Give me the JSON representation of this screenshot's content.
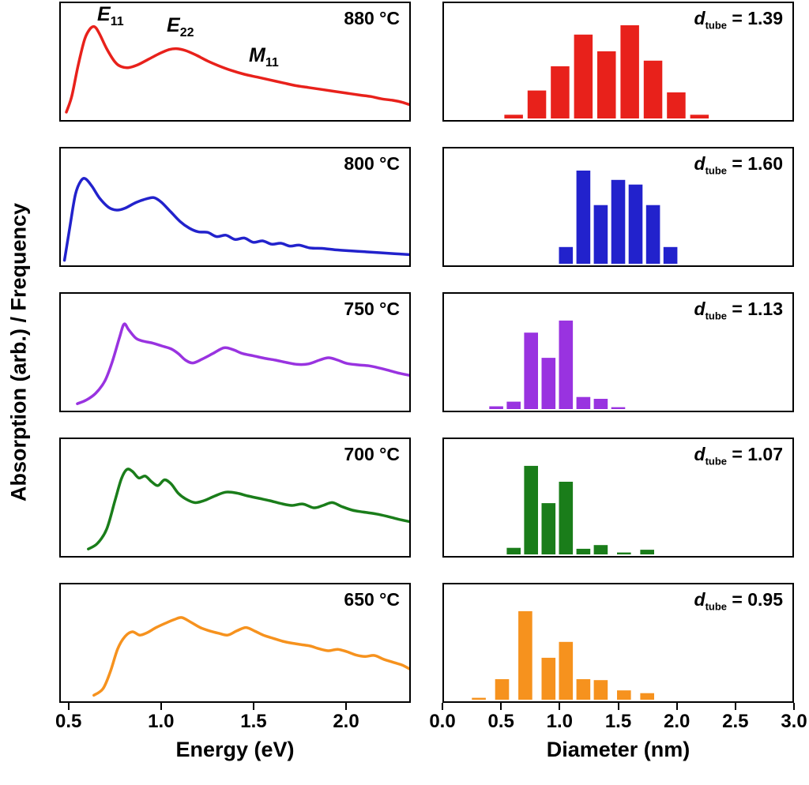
{
  "ylabel": "Absorption (arb.) / Frequency",
  "labels": {
    "d_symbol": "d",
    "d_sub": "tube"
  },
  "axes": {
    "energy": {
      "title": "Energy (eV)",
      "range": [
        0.45,
        2.35
      ],
      "tick_values": [
        0.5,
        1.0,
        1.5,
        2.0
      ],
      "tick_labels": [
        "0.5",
        "1.0",
        "1.5",
        "2.0"
      ]
    },
    "diameter": {
      "title": "Diameter (nm)",
      "range": [
        0.0,
        3.0
      ],
      "tick_values": [
        0.0,
        0.5,
        1.0,
        1.5,
        2.0,
        2.5,
        3.0
      ],
      "tick_labels": [
        "0.0",
        "0.5",
        "1.0",
        "1.5",
        "2.0",
        "2.5",
        "3.0"
      ]
    }
  },
  "annotations": [
    {
      "symbol": "E",
      "sub": "11"
    },
    {
      "symbol": "E",
      "sub": "22"
    },
    {
      "symbol": "M",
      "sub": "11"
    }
  ],
  "chart_data": [
    {
      "temperature": "880 °C",
      "dtube_nm": 1.39,
      "dtube_text": " = 1.39",
      "color": "#e8211b",
      "spectrum": {
        "type": "line",
        "xlabel": "Energy (eV)",
        "ylabel": "Absorption (arb.)",
        "xlim": [
          0.45,
          2.35
        ],
        "points": [
          [
            0.48,
            0.05
          ],
          [
            0.51,
            0.22
          ],
          [
            0.545,
            0.55
          ],
          [
            0.58,
            0.82
          ],
          [
            0.61,
            0.93
          ],
          [
            0.635,
            0.95
          ],
          [
            0.66,
            0.88
          ],
          [
            0.7,
            0.72
          ],
          [
            0.745,
            0.58
          ],
          [
            0.78,
            0.53
          ],
          [
            0.82,
            0.52
          ],
          [
            0.87,
            0.55
          ],
          [
            0.93,
            0.61
          ],
          [
            0.99,
            0.67
          ],
          [
            1.04,
            0.71
          ],
          [
            1.08,
            0.72
          ],
          [
            1.13,
            0.7
          ],
          [
            1.19,
            0.65
          ],
          [
            1.25,
            0.59
          ],
          [
            1.31,
            0.54
          ],
          [
            1.38,
            0.49
          ],
          [
            1.45,
            0.45
          ],
          [
            1.52,
            0.42
          ],
          [
            1.59,
            0.39
          ],
          [
            1.66,
            0.36
          ],
          [
            1.73,
            0.33
          ],
          [
            1.8,
            0.31
          ],
          [
            1.87,
            0.29
          ],
          [
            1.94,
            0.27
          ],
          [
            2.01,
            0.25
          ],
          [
            2.08,
            0.23
          ],
          [
            2.14,
            0.215
          ],
          [
            2.2,
            0.19
          ],
          [
            2.26,
            0.175
          ],
          [
            2.31,
            0.155
          ],
          [
            2.35,
            0.13
          ]
        ]
      },
      "histogram": {
        "type": "bar",
        "xlabel": "Diameter (nm)",
        "ylabel": "Frequency (arb.)",
        "xlim": [
          0.0,
          3.0
        ],
        "ylim": [
          0,
          1.1
        ],
        "bar_width_nm": 0.16,
        "bin_centers": [
          0.6,
          0.8,
          1.0,
          1.2,
          1.4,
          1.6,
          1.8,
          2.0,
          2.2
        ],
        "frequencies": [
          0.04,
          0.3,
          0.56,
          0.9,
          0.72,
          1.0,
          0.62,
          0.28,
          0.04
        ]
      }
    },
    {
      "temperature": "800 °C",
      "dtube_nm": 1.6,
      "dtube_text": " = 1.60",
      "color": "#2222cc",
      "spectrum": {
        "type": "line",
        "xlabel": "Energy (eV)",
        "ylabel": "Absorption (arb.)",
        "xlim": [
          0.45,
          2.35
        ],
        "points": [
          [
            0.47,
            0.02
          ],
          [
            0.5,
            0.38
          ],
          [
            0.53,
            0.72
          ],
          [
            0.56,
            0.86
          ],
          [
            0.585,
            0.88
          ],
          [
            0.62,
            0.8
          ],
          [
            0.66,
            0.68
          ],
          [
            0.71,
            0.58
          ],
          [
            0.755,
            0.55
          ],
          [
            0.8,
            0.57
          ],
          [
            0.86,
            0.63
          ],
          [
            0.92,
            0.67
          ],
          [
            0.96,
            0.68
          ],
          [
            1.0,
            0.63
          ],
          [
            1.05,
            0.53
          ],
          [
            1.1,
            0.43
          ],
          [
            1.15,
            0.36
          ],
          [
            1.2,
            0.32
          ],
          [
            1.25,
            0.315
          ],
          [
            1.3,
            0.27
          ],
          [
            1.35,
            0.285
          ],
          [
            1.4,
            0.24
          ],
          [
            1.45,
            0.255
          ],
          [
            1.5,
            0.21
          ],
          [
            1.55,
            0.225
          ],
          [
            1.6,
            0.19
          ],
          [
            1.65,
            0.2
          ],
          [
            1.7,
            0.17
          ],
          [
            1.75,
            0.18
          ],
          [
            1.81,
            0.15
          ],
          [
            1.88,
            0.145
          ],
          [
            1.95,
            0.13
          ],
          [
            2.03,
            0.12
          ],
          [
            2.11,
            0.11
          ],
          [
            2.19,
            0.1
          ],
          [
            2.27,
            0.09
          ],
          [
            2.35,
            0.08
          ]
        ]
      },
      "histogram": {
        "type": "bar",
        "xlabel": "Diameter (nm)",
        "ylabel": "Frequency (arb.)",
        "xlim": [
          0.0,
          3.0
        ],
        "ylim": [
          0,
          1.1
        ],
        "bar_width_nm": 0.12,
        "bin_centers": [
          1.05,
          1.2,
          1.35,
          1.5,
          1.65,
          1.8,
          1.95
        ],
        "frequencies": [
          0.18,
          1.0,
          0.63,
          0.9,
          0.85,
          0.63,
          0.18
        ]
      }
    },
    {
      "temperature": "750 °C",
      "dtube_nm": 1.13,
      "dtube_text": " = 1.13",
      "color": "#9933e0",
      "spectrum": {
        "type": "line",
        "xlabel": "Energy (eV)",
        "ylabel": "Absorption (arb.)",
        "xlim": [
          0.45,
          2.35
        ],
        "points": [
          [
            0.54,
            0.04
          ],
          [
            0.59,
            0.08
          ],
          [
            0.64,
            0.15
          ],
          [
            0.69,
            0.28
          ],
          [
            0.73,
            0.48
          ],
          [
            0.77,
            0.74
          ],
          [
            0.795,
            0.88
          ],
          [
            0.82,
            0.82
          ],
          [
            0.86,
            0.73
          ],
          [
            0.9,
            0.7
          ],
          [
            0.95,
            0.68
          ],
          [
            1.0,
            0.65
          ],
          [
            1.05,
            0.62
          ],
          [
            1.09,
            0.57
          ],
          [
            1.13,
            0.5
          ],
          [
            1.17,
            0.47
          ],
          [
            1.22,
            0.51
          ],
          [
            1.28,
            0.57
          ],
          [
            1.34,
            0.63
          ],
          [
            1.39,
            0.61
          ],
          [
            1.44,
            0.57
          ],
          [
            1.5,
            0.545
          ],
          [
            1.56,
            0.52
          ],
          [
            1.62,
            0.5
          ],
          [
            1.68,
            0.475
          ],
          [
            1.74,
            0.455
          ],
          [
            1.8,
            0.46
          ],
          [
            1.86,
            0.5
          ],
          [
            1.91,
            0.525
          ],
          [
            1.96,
            0.5
          ],
          [
            2.01,
            0.465
          ],
          [
            2.07,
            0.45
          ],
          [
            2.13,
            0.44
          ],
          [
            2.19,
            0.415
          ],
          [
            2.25,
            0.385
          ],
          [
            2.3,
            0.36
          ],
          [
            2.35,
            0.34
          ]
        ]
      },
      "histogram": {
        "type": "bar",
        "xlabel": "Diameter (nm)",
        "ylabel": "Frequency (arb.)",
        "xlim": [
          0.0,
          3.0
        ],
        "ylim": [
          0,
          1.1
        ],
        "bar_width_nm": 0.12,
        "bin_centers": [
          0.45,
          0.6,
          0.75,
          0.9,
          1.05,
          1.2,
          1.35,
          1.5
        ],
        "frequencies": [
          0.03,
          0.08,
          0.82,
          0.55,
          0.95,
          0.13,
          0.11,
          0.02
        ]
      }
    },
    {
      "temperature": "700 °C",
      "dtube_nm": 1.07,
      "dtube_text": " = 1.07",
      "color": "#1a7d1a",
      "spectrum": {
        "type": "line",
        "xlabel": "Energy (eV)",
        "ylabel": "Absorption (arb.)",
        "xlim": [
          0.45,
          2.35
        ],
        "points": [
          [
            0.6,
            0.04
          ],
          [
            0.65,
            0.1
          ],
          [
            0.7,
            0.25
          ],
          [
            0.745,
            0.55
          ],
          [
            0.78,
            0.78
          ],
          [
            0.81,
            0.88
          ],
          [
            0.84,
            0.86
          ],
          [
            0.875,
            0.79
          ],
          [
            0.91,
            0.81
          ],
          [
            0.945,
            0.75
          ],
          [
            0.98,
            0.71
          ],
          [
            1.015,
            0.77
          ],
          [
            1.05,
            0.73
          ],
          [
            1.09,
            0.63
          ],
          [
            1.13,
            0.57
          ],
          [
            1.18,
            0.53
          ],
          [
            1.23,
            0.55
          ],
          [
            1.29,
            0.6
          ],
          [
            1.35,
            0.64
          ],
          [
            1.41,
            0.63
          ],
          [
            1.47,
            0.6
          ],
          [
            1.53,
            0.575
          ],
          [
            1.59,
            0.55
          ],
          [
            1.65,
            0.52
          ],
          [
            1.71,
            0.5
          ],
          [
            1.77,
            0.515
          ],
          [
            1.83,
            0.475
          ],
          [
            1.88,
            0.5
          ],
          [
            1.93,
            0.53
          ],
          [
            1.98,
            0.49
          ],
          [
            2.04,
            0.45
          ],
          [
            2.1,
            0.43
          ],
          [
            2.17,
            0.41
          ],
          [
            2.23,
            0.385
          ],
          [
            2.29,
            0.355
          ],
          [
            2.35,
            0.33
          ]
        ]
      },
      "histogram": {
        "type": "bar",
        "xlabel": "Diameter (nm)",
        "ylabel": "Frequency (arb.)",
        "xlim": [
          0.0,
          3.0
        ],
        "ylim": [
          0,
          1.1
        ],
        "bar_width_nm": 0.12,
        "bin_centers": [
          0.6,
          0.75,
          0.9,
          1.05,
          1.2,
          1.35,
          1.55,
          1.75
        ],
        "frequencies": [
          0.07,
          0.95,
          0.55,
          0.78,
          0.06,
          0.1,
          0.02,
          0.05
        ]
      }
    },
    {
      "temperature": "650 °C",
      "dtube_nm": 0.95,
      "dtube_text": " = 0.95",
      "color": "#f6921e",
      "spectrum": {
        "type": "line",
        "xlabel": "Energy (eV)",
        "ylabel": "Absorption (arb.)",
        "xlim": [
          0.45,
          2.35
        ],
        "points": [
          [
            0.63,
            0.03
          ],
          [
            0.68,
            0.1
          ],
          [
            0.72,
            0.28
          ],
          [
            0.76,
            0.52
          ],
          [
            0.8,
            0.65
          ],
          [
            0.84,
            0.7
          ],
          [
            0.88,
            0.665
          ],
          [
            0.92,
            0.69
          ],
          [
            0.97,
            0.745
          ],
          [
            1.02,
            0.79
          ],
          [
            1.07,
            0.83
          ],
          [
            1.11,
            0.85
          ],
          [
            1.16,
            0.8
          ],
          [
            1.21,
            0.745
          ],
          [
            1.26,
            0.71
          ],
          [
            1.31,
            0.685
          ],
          [
            1.36,
            0.665
          ],
          [
            1.41,
            0.71
          ],
          [
            1.46,
            0.745
          ],
          [
            1.51,
            0.705
          ],
          [
            1.56,
            0.66
          ],
          [
            1.61,
            0.63
          ],
          [
            1.66,
            0.6
          ],
          [
            1.71,
            0.58
          ],
          [
            1.76,
            0.565
          ],
          [
            1.81,
            0.55
          ],
          [
            1.86,
            0.52
          ],
          [
            1.91,
            0.5
          ],
          [
            1.96,
            0.515
          ],
          [
            2.01,
            0.49
          ],
          [
            2.06,
            0.455
          ],
          [
            2.11,
            0.44
          ],
          [
            2.16,
            0.45
          ],
          [
            2.21,
            0.41
          ],
          [
            2.26,
            0.38
          ],
          [
            2.31,
            0.35
          ],
          [
            2.35,
            0.31
          ]
        ]
      },
      "histogram": {
        "type": "bar",
        "xlabel": "Diameter (nm)",
        "ylabel": "Frequency (arb.)",
        "xlim": [
          0.0,
          3.0
        ],
        "ylim": [
          0,
          1.1
        ],
        "bar_width_nm": 0.12,
        "bin_centers": [
          0.3,
          0.5,
          0.7,
          0.9,
          1.05,
          1.2,
          1.35,
          1.55,
          1.75
        ],
        "frequencies": [
          0.02,
          0.22,
          0.95,
          0.45,
          0.62,
          0.22,
          0.21,
          0.1,
          0.07
        ]
      }
    }
  ]
}
